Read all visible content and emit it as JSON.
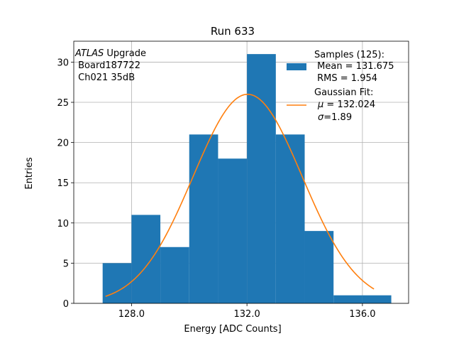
{
  "chart_data": {
    "type": "bar",
    "title": "Run 633",
    "xlabel": "Energy [ADC Counts]",
    "ylabel": "Entries",
    "xlim": [
      126.0,
      137.6
    ],
    "ylim": [
      0,
      32.6
    ],
    "grid": true,
    "x_ticks": [
      128.0,
      132.0,
      136.0
    ],
    "x_tick_labels": [
      "128.0",
      "132.0",
      "136.0"
    ],
    "y_ticks": [
      0,
      5,
      10,
      15,
      20,
      25,
      30
    ],
    "y_tick_labels": [
      "0",
      "5",
      "10",
      "15",
      "20",
      "25",
      "30"
    ],
    "bin_edges": [
      127,
      128,
      129,
      130,
      131,
      132,
      133,
      134,
      135,
      136,
      137
    ],
    "histogram": {
      "name": "Samples (125):",
      "color": "#1f77b4",
      "values": [
        5,
        11,
        7,
        21,
        18,
        31,
        21,
        9,
        1,
        1
      ]
    },
    "fit": {
      "name": "Gaussian Fit:",
      "color": "#ff7f0e",
      "mu": 132.024,
      "sigma": 1.89,
      "amplitude": 26.0,
      "x_range": [
        127.1,
        136.4
      ]
    },
    "annotation": {
      "line1_italic": "ATLAS",
      "line1_rest": " Upgrade",
      "line2": " Board187722",
      "line3": " Ch021 35dB"
    },
    "legend": {
      "location": "top-right",
      "hist_title": "Samples (125):",
      "hist_mean": " Mean = 131.675",
      "hist_rms": " RMS = 1.954",
      "fit_title": "Gaussian Fit:",
      "fit_mu_symbol": "μ",
      "fit_mu_value": " = 132.024",
      "fit_sigma_symbol": "σ",
      "fit_sigma_value": "=1.89"
    }
  }
}
